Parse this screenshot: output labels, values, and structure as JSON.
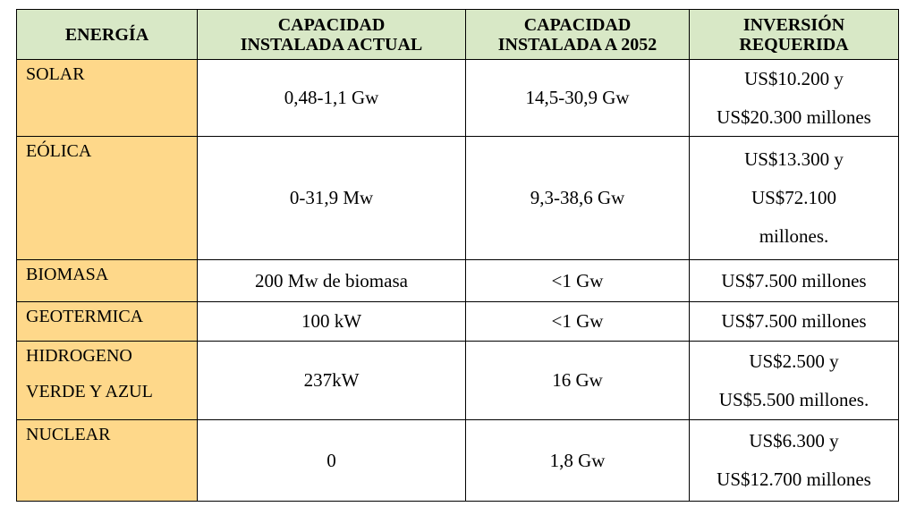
{
  "table": {
    "header": [
      [
        "ENERGÍA"
      ],
      [
        "CAPACIDAD",
        "INSTALADA ACTUAL"
      ],
      [
        "CAPACIDAD",
        "INSTALADA A 2052"
      ],
      [
        "INVERSIÓN",
        "REQUERIDA"
      ]
    ],
    "rows": [
      [
        [
          "SOLAR"
        ],
        [
          "0,48-1,1 Gw"
        ],
        [
          "14,5-30,9 Gw"
        ],
        [
          "US$10.200 y",
          "US$20.300 millones"
        ]
      ],
      [
        [
          "EÓLICA"
        ],
        [
          "0-31,9 Mw"
        ],
        [
          "9,3-38,6 Gw"
        ],
        [
          "US$13.300 y",
          "US$72.100",
          "millones."
        ]
      ],
      [
        [
          "BIOMASA"
        ],
        [
          "200 Mw de biomasa"
        ],
        [
          "<1 Gw"
        ],
        [
          "US$7.500 millones"
        ]
      ],
      [
        [
          "GEOTERMICA"
        ],
        [
          "100 kW"
        ],
        [
          "<1 Gw"
        ],
        [
          "US$7.500 millones"
        ]
      ],
      [
        [
          "HIDROGENO",
          "VERDE Y AZUL"
        ],
        [
          "237kW"
        ],
        [
          "16 Gw"
        ],
        [
          "US$2.500 y",
          "US$5.500 millones."
        ]
      ],
      [
        [
          "NUCLEAR"
        ],
        [
          "0"
        ],
        [
          "1,8 Gw"
        ],
        [
          "US$6.300 y",
          "US$12.700 millones"
        ]
      ]
    ]
  }
}
